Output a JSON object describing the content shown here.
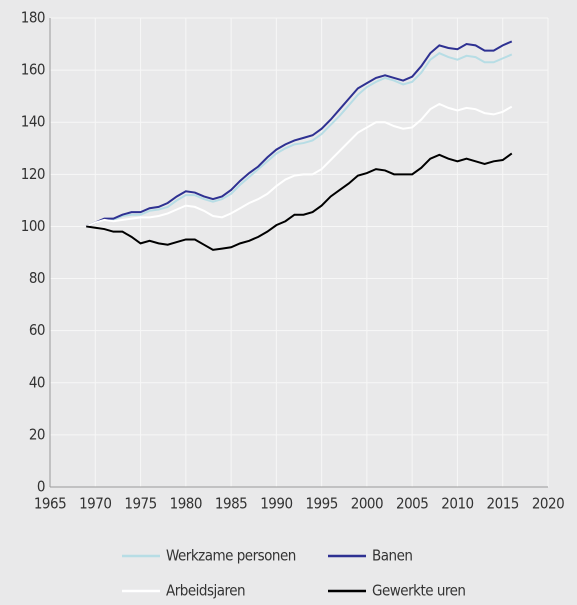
{
  "chart_data": {
    "type": "line",
    "x": [
      1969,
      1970,
      1971,
      1972,
      1973,
      1974,
      1975,
      1976,
      1977,
      1978,
      1979,
      1980,
      1981,
      1982,
      1983,
      1984,
      1985,
      1986,
      1987,
      1988,
      1989,
      1990,
      1991,
      1992,
      1993,
      1994,
      1995,
      1996,
      1997,
      1998,
      1999,
      2000,
      2001,
      2002,
      2003,
      2004,
      2005,
      2006,
      2007,
      2008,
      2009,
      2010,
      2011,
      2012,
      2013,
      2014,
      2015,
      2016
    ],
    "series": [
      {
        "name": "Werkzame personen",
        "color": "#b7dde5",
        "values": [
          100,
          101.5,
          102.5,
          102.5,
          104,
          104.5,
          104.5,
          106,
          106.5,
          107.5,
          110,
          112,
          112,
          110.5,
          109.5,
          110.5,
          112.5,
          116,
          119,
          122,
          125,
          128,
          130,
          131.5,
          132,
          133,
          135.5,
          139,
          142.5,
          146.5,
          150.5,
          153.5,
          155.5,
          157,
          156,
          154.5,
          155.5,
          159,
          164,
          166.5,
          165,
          164,
          165.5,
          165,
          163,
          163,
          164.5,
          166
        ]
      },
      {
        "name": "Banen",
        "color": "#2e3192",
        "values": [
          100,
          101.5,
          103,
          103,
          104.5,
          105.5,
          105.5,
          107,
          107.5,
          109,
          111.5,
          113.5,
          113,
          111.5,
          110.5,
          111.5,
          114,
          117.5,
          120.5,
          123,
          126.5,
          129.5,
          131.5,
          133,
          134,
          135,
          137.5,
          141,
          145,
          149,
          153,
          155,
          157,
          158,
          157,
          156,
          157.5,
          161.5,
          166.5,
          169.5,
          168.5,
          168,
          170,
          169.5,
          167.5,
          167.5,
          169.5,
          171
        ]
      },
      {
        "name": "Arbeidsjaren",
        "color": "#ffffff",
        "values": [
          100,
          101.5,
          102.5,
          102,
          102.5,
          103,
          103.5,
          103.5,
          104,
          105,
          106.5,
          108,
          107.5,
          106,
          104,
          103.5,
          105,
          107,
          109,
          110.5,
          112.5,
          115.5,
          118,
          119.5,
          120,
          120,
          122,
          125.5,
          129,
          132.5,
          136,
          138,
          140,
          140,
          138.5,
          137.5,
          138,
          141,
          145,
          147,
          145.5,
          144.5,
          145.5,
          145,
          143.5,
          143,
          144,
          146
        ]
      },
      {
        "name": "Gewerkte uren",
        "color": "#000000",
        "values": [
          100,
          99.5,
          99,
          98,
          98,
          96,
          93.5,
          94.5,
          93.5,
          93,
          94,
          95,
          95,
          93,
          91,
          91.5,
          92,
          93.5,
          94.5,
          96,
          98,
          100.5,
          102,
          104.5,
          104.5,
          105.5,
          108,
          111.5,
          114,
          116.5,
          119.5,
          120.5,
          122,
          121.5,
          120,
          120,
          120,
          122.5,
          126,
          127.5,
          126,
          125,
          126,
          125,
          124,
          125,
          125.5,
          128
        ]
      }
    ],
    "xlim": [
      1965,
      2020
    ],
    "xticks": [
      1965,
      1970,
      1975,
      1980,
      1985,
      1990,
      1995,
      2000,
      2005,
      2010,
      2015,
      2020
    ],
    "ylim": [
      0,
      180
    ],
    "yticks": [
      0,
      20,
      40,
      60,
      80,
      100,
      120,
      140,
      160,
      180
    ],
    "grid": true
  }
}
